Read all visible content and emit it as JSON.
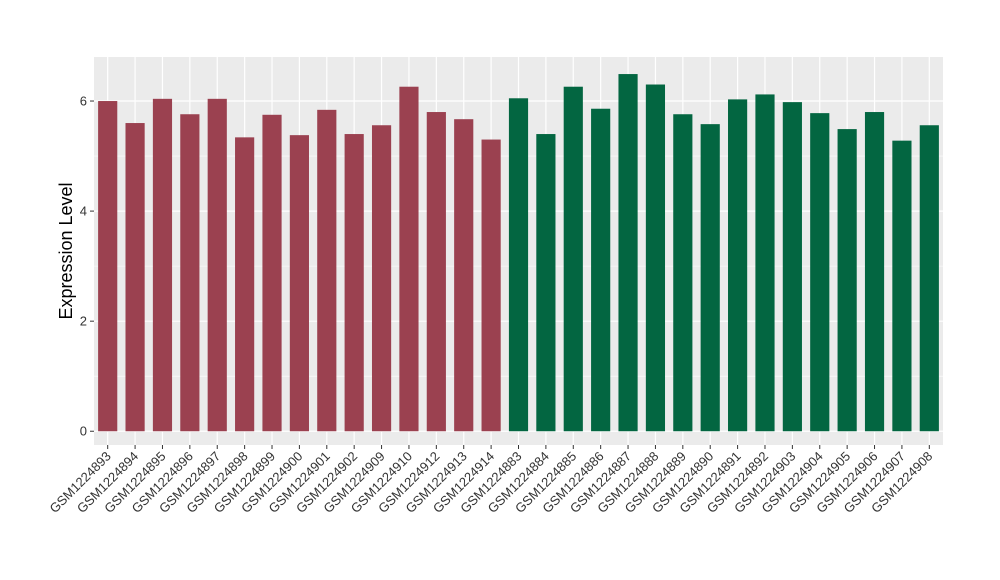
{
  "chart_data": {
    "type": "bar",
    "ylabel": "Expression Level",
    "xlabel": "",
    "ylim": [
      -0.25,
      6.8
    ],
    "yticks": [
      0,
      2,
      4,
      6
    ],
    "grid": true,
    "panel_background": "#ebebeb",
    "grid_color": "#ffffff",
    "categories": [
      "GSM1224893",
      "GSM1224894",
      "GSM1224895",
      "GSM1224896",
      "GSM1224897",
      "GSM1224898",
      "GSM1224899",
      "GSM1224900",
      "GSM1224901",
      "GSM1224902",
      "GSM1224909",
      "GSM1224910",
      "GSM1224912",
      "GSM1224913",
      "GSM1224914",
      "GSM1224883",
      "GSM1224884",
      "GSM1224885",
      "GSM1224886",
      "GSM1224887",
      "GSM1224888",
      "GSM1224889",
      "GSM1224890",
      "GSM1224891",
      "GSM1224892",
      "GSM1224903",
      "GSM1224904",
      "GSM1224905",
      "GSM1224906",
      "GSM1224907",
      "GSM1224908"
    ],
    "values": [
      6.0,
      5.6,
      6.04,
      5.76,
      6.04,
      5.34,
      5.75,
      5.38,
      5.84,
      5.4,
      5.56,
      6.26,
      5.8,
      5.67,
      5.3,
      6.05,
      5.4,
      6.26,
      5.86,
      6.49,
      6.3,
      5.76,
      5.58,
      6.03,
      6.12,
      5.98,
      5.78,
      5.49,
      5.8,
      5.28,
      5.56
    ],
    "groups": [
      0,
      0,
      0,
      0,
      0,
      0,
      0,
      0,
      0,
      0,
      0,
      0,
      0,
      0,
      0,
      1,
      1,
      1,
      1,
      1,
      1,
      1,
      1,
      1,
      1,
      1,
      1,
      1,
      1,
      1,
      1
    ],
    "group_colors": [
      "#9b4150",
      "#036641"
    ]
  }
}
